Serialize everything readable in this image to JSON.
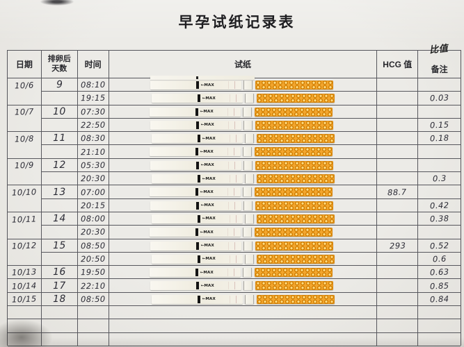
{
  "title": "早孕试纸记录表",
  "header": {
    "date": "日期",
    "days_line1": "排卵后",
    "days_line2": "天数",
    "time": "时间",
    "strip": "试纸",
    "hcg": "HCG 值",
    "note": "备注",
    "note_annotation": "比值"
  },
  "strip_label": "←MAX",
  "rows": [
    {
      "date": "10/6",
      "days": "9",
      "time": "08:10",
      "hcg": "",
      "note": ""
    },
    {
      "date": "",
      "days": "",
      "time": "19:15",
      "hcg": "",
      "note": "0.03"
    },
    {
      "date": "10/7",
      "days": "10",
      "time": "07:30",
      "hcg": "",
      "note": ""
    },
    {
      "date": "",
      "days": "",
      "time": "22:50",
      "hcg": "",
      "note": "0.15"
    },
    {
      "date": "10/8",
      "days": "11",
      "time": "08:30",
      "hcg": "",
      "note": "0.18"
    },
    {
      "date": "",
      "days": "",
      "time": "21:10",
      "hcg": "",
      "note": ""
    },
    {
      "date": "10/9",
      "days": "12",
      "time": "05:30",
      "hcg": "",
      "note": ""
    },
    {
      "date": "",
      "days": "",
      "time": "20:30",
      "hcg": "",
      "note": "0.3"
    },
    {
      "date": "10/10",
      "days": "13",
      "time": "07:00",
      "hcg": "88.7",
      "note": ""
    },
    {
      "date": "",
      "days": "",
      "time": "20:15",
      "hcg": "",
      "note": "0.42"
    },
    {
      "date": "10/11",
      "days": "14",
      "time": "08:00",
      "hcg": "",
      "note": "0.38"
    },
    {
      "date": "",
      "days": "",
      "time": "20:30",
      "hcg": "",
      "note": ""
    },
    {
      "date": "10/12",
      "days": "15",
      "time": "08:50",
      "hcg": "293",
      "note": "0.52"
    },
    {
      "date": "",
      "days": "",
      "time": "20:50",
      "hcg": "",
      "note": "0.6"
    },
    {
      "date": "10/13",
      "days": "16",
      "time": "19:50",
      "hcg": "",
      "note": "0.63"
    },
    {
      "date": "10/14",
      "days": "17",
      "time": "22:10",
      "hcg": "",
      "note": "0.85"
    },
    {
      "date": "10/15",
      "days": "18",
      "time": "08:50",
      "hcg": "",
      "note": "0.84"
    }
  ]
}
